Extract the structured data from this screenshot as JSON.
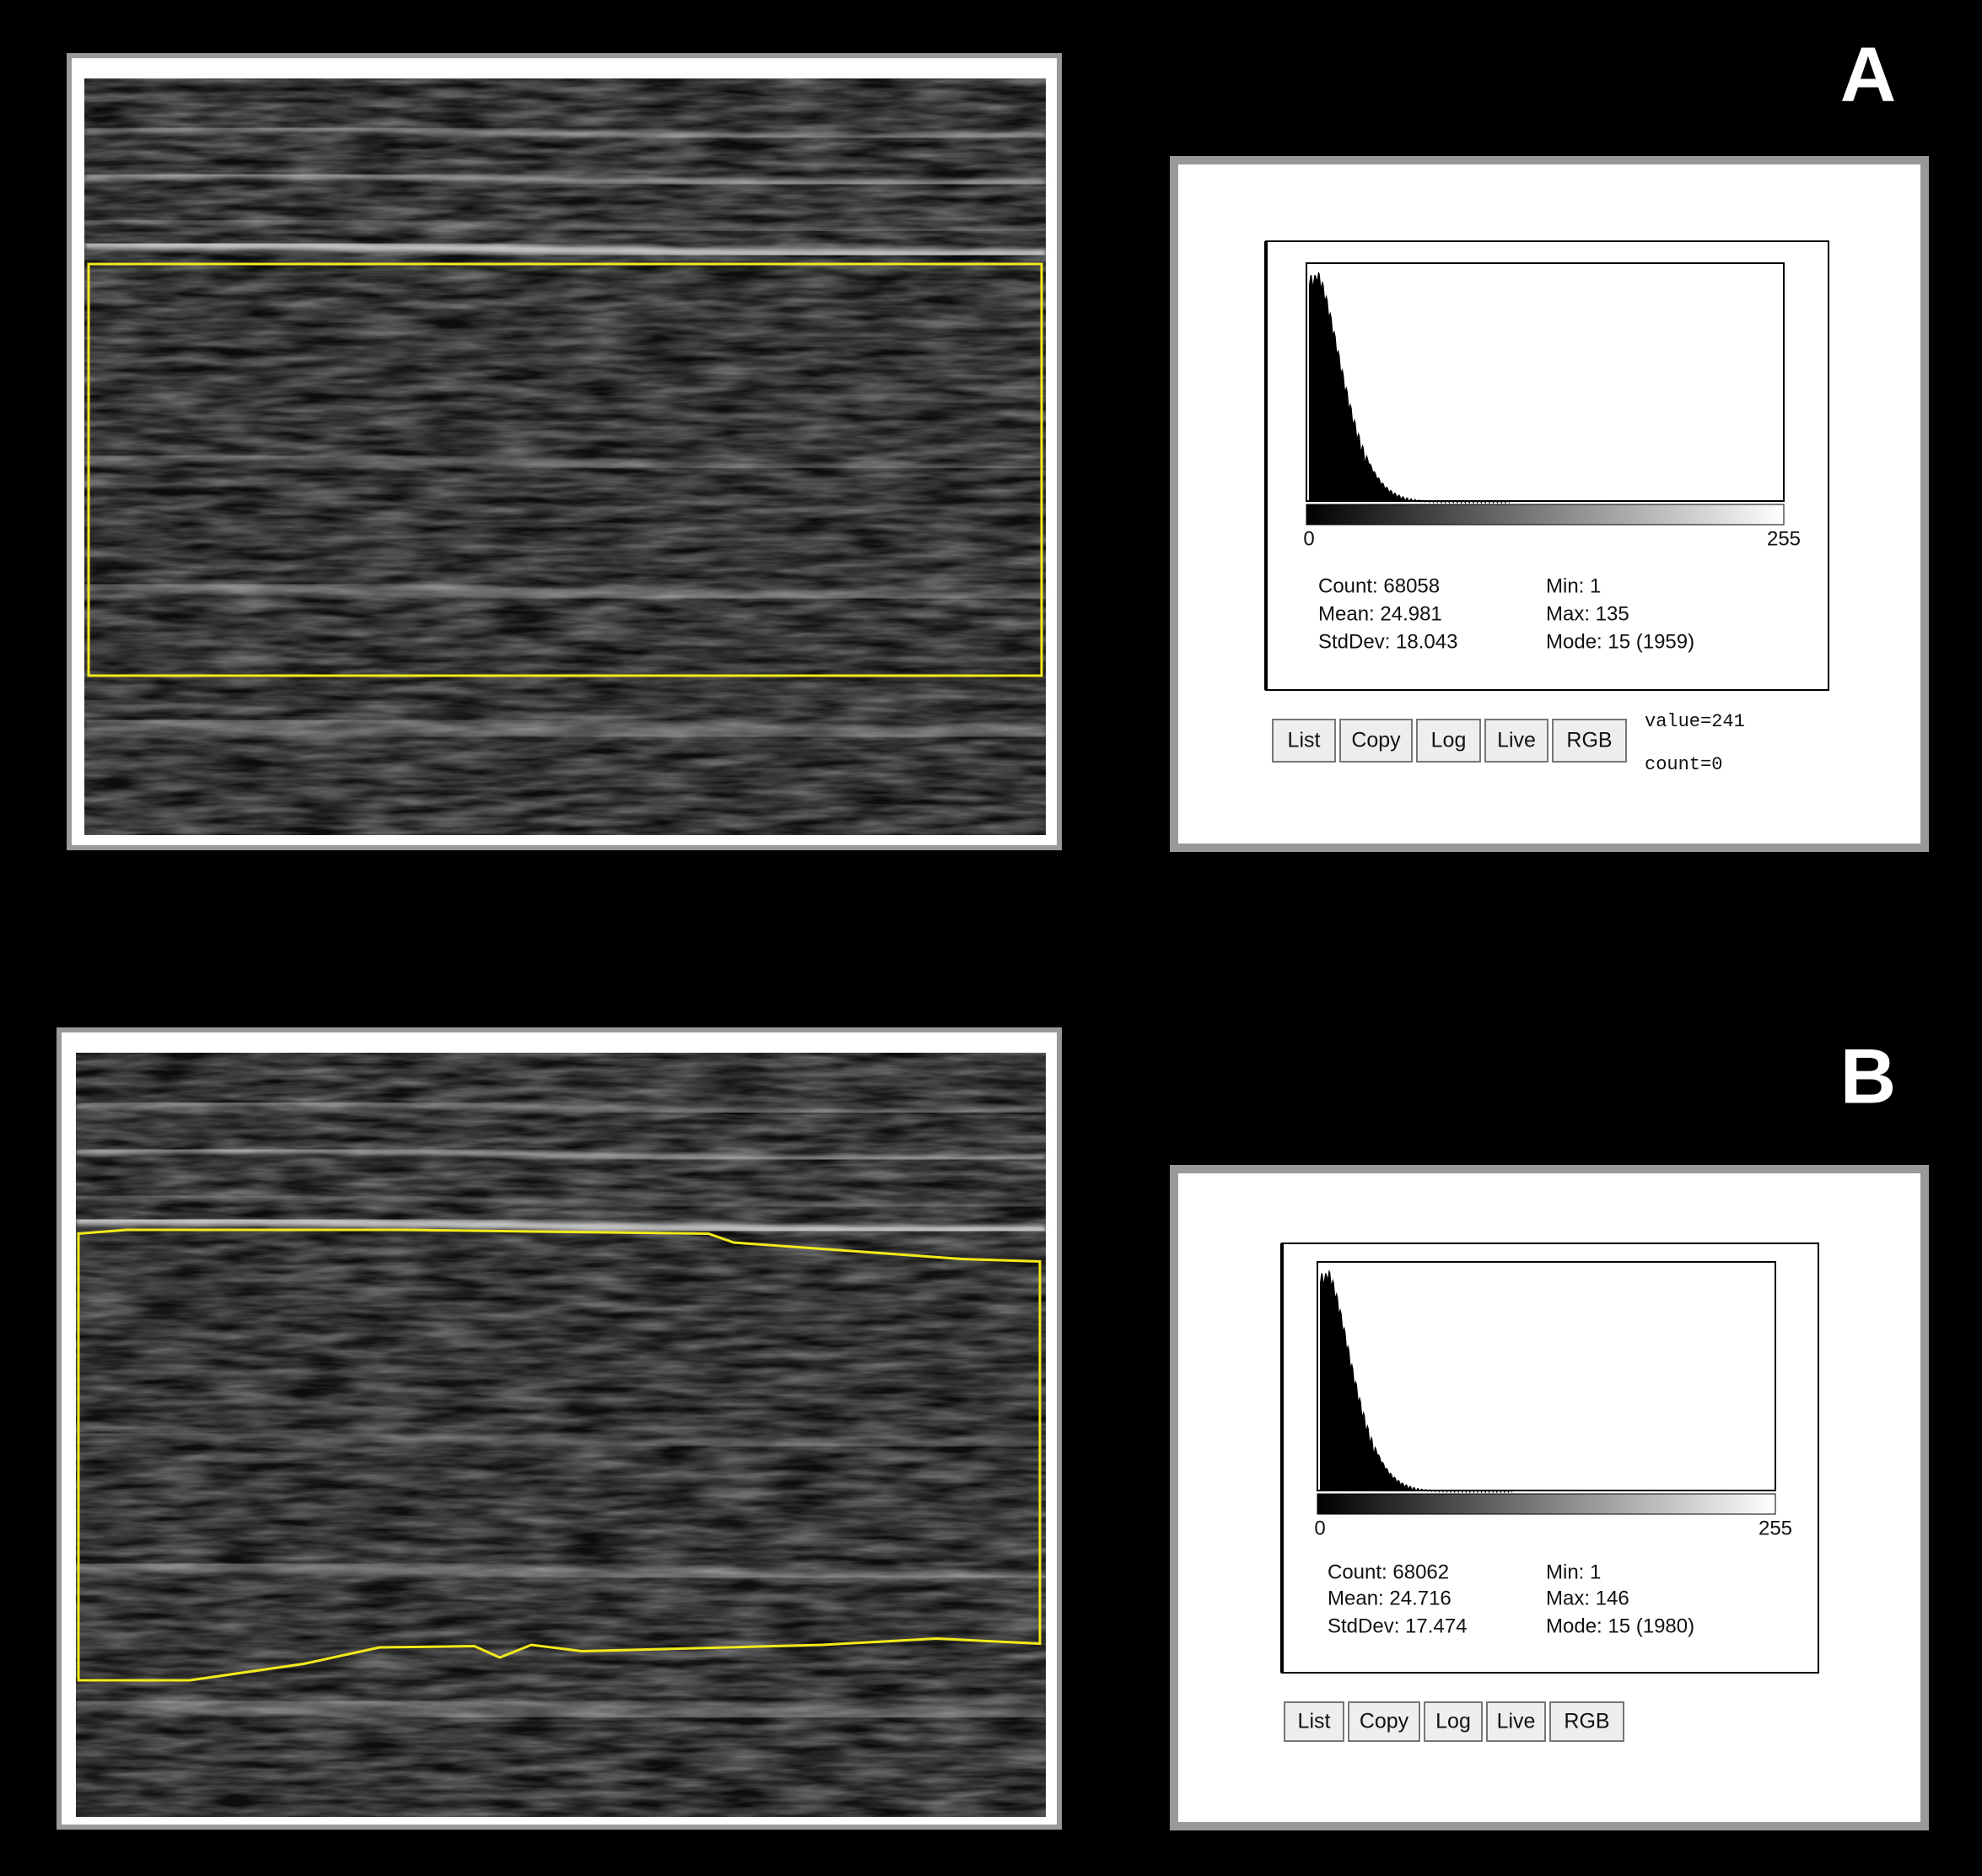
{
  "panels": [
    {
      "label": "A",
      "histogram": {
        "axis_min": "0",
        "axis_max": "255",
        "stats_left": [
          "Count: 68058",
          "Mean: 24.981",
          "StdDev: 18.043"
        ],
        "stats_right": [
          "Min: 1",
          "Max: 135",
          "Mode: 15 (1959)"
        ]
      },
      "buttons": [
        "List",
        "Copy",
        "Log",
        "Live",
        "RGB"
      ],
      "readout": [
        "value=241",
        "count=0"
      ]
    },
    {
      "label": "B",
      "histogram": {
        "axis_min": "0",
        "axis_max": "255",
        "stats_left": [
          "Count: 68062",
          "Mean: 24.716",
          "StdDev: 17.474"
        ],
        "stats_right": [
          "Min: 1",
          "Max: 146",
          "Mode: 15 (1980)"
        ]
      },
      "buttons": [
        "List",
        "Copy",
        "Log",
        "Live",
        "RGB"
      ]
    }
  ]
}
